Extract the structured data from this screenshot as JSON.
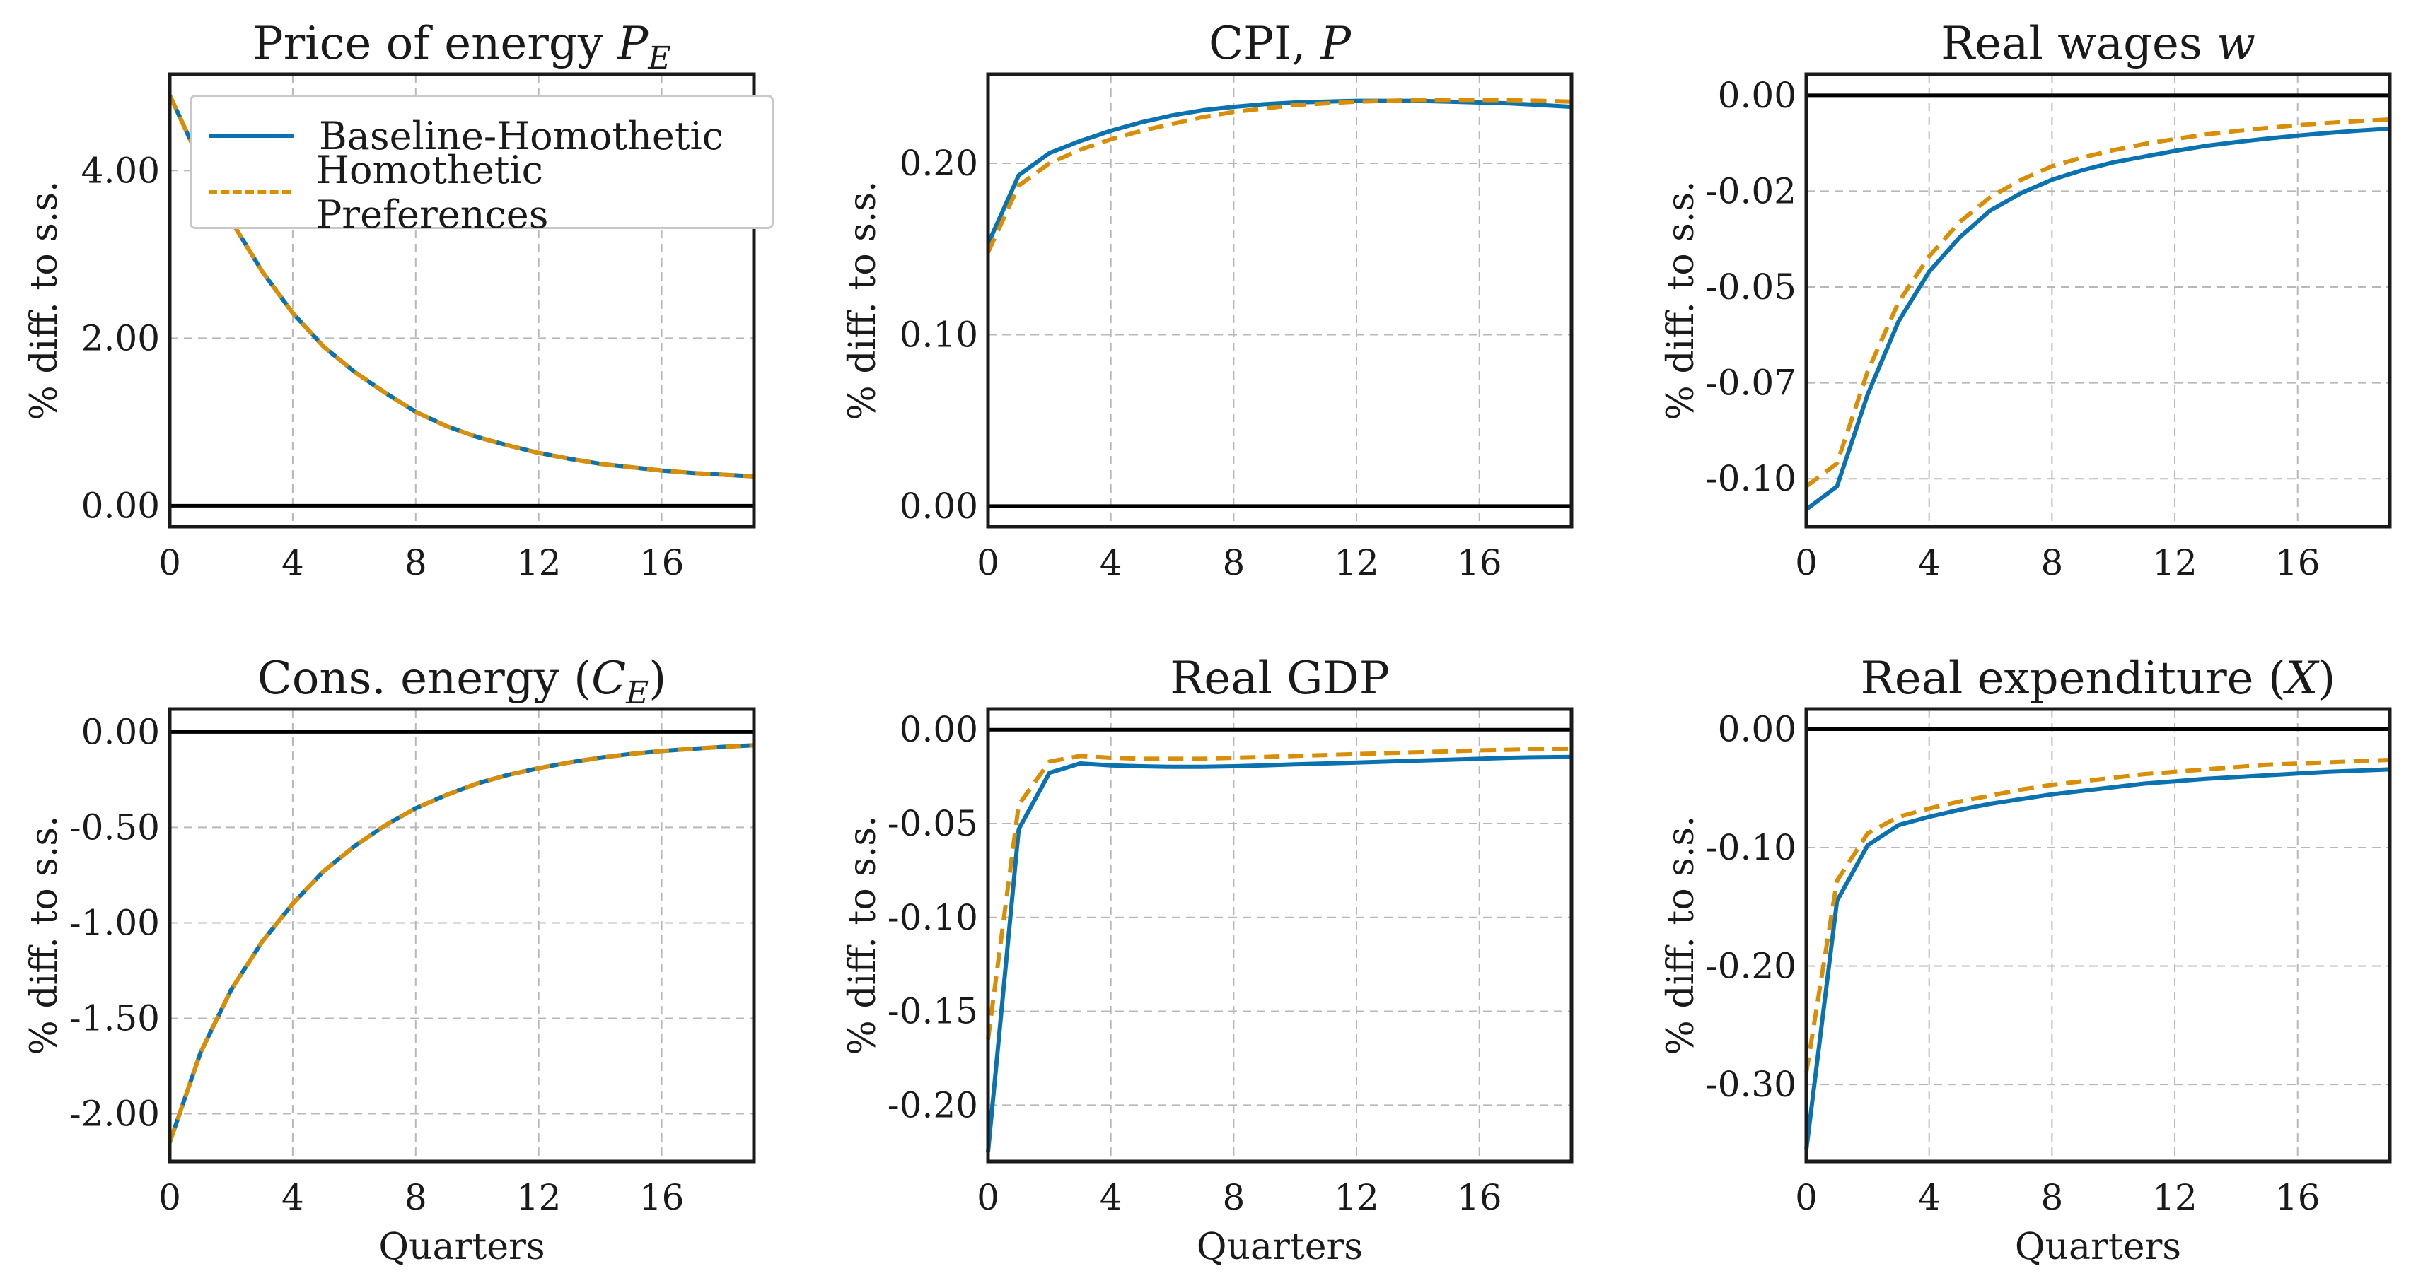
{
  "legend": {
    "placement": "top-right (first panel)",
    "items": [
      {
        "label": "Baseline-Homothetic",
        "color": "#0b72b0",
        "style": "solid"
      },
      {
        "label": "Homothetic Preferences",
        "color": "#d88e06",
        "style": "dashed"
      }
    ]
  },
  "chart_data": [
    {
      "type": "line",
      "title": "Price of energy ",
      "title_var": "P",
      "title_sub": "E",
      "title_suffix": "",
      "ylabel": "% diff. to s.s.",
      "xlabel": "",
      "xlim": [
        0,
        19
      ],
      "ylim": [
        -0.25,
        5.15
      ],
      "xticks": [
        0,
        4,
        8,
        12,
        16
      ],
      "xtick_labels": [
        "0",
        "4",
        "8",
        "12",
        "16"
      ],
      "yticks": [
        0,
        2,
        4
      ],
      "ytick_labels": [
        "0.00",
        "2.00",
        "4.00"
      ],
      "grid": true,
      "zero_line": true,
      "x": [
        0,
        1,
        2,
        3,
        4,
        5,
        6,
        7,
        8,
        9,
        10,
        11,
        12,
        13,
        14,
        15,
        16,
        17,
        18,
        19
      ],
      "series": [
        {
          "name": "Baseline-Homothetic",
          "values": [
            4.9,
            4.1,
            3.4,
            2.8,
            2.3,
            1.9,
            1.6,
            1.35,
            1.12,
            0.95,
            0.82,
            0.72,
            0.63,
            0.56,
            0.5,
            0.46,
            0.42,
            0.39,
            0.37,
            0.35
          ]
        },
        {
          "name": "Homothetic Preferences",
          "values": [
            4.9,
            4.1,
            3.4,
            2.8,
            2.3,
            1.9,
            1.6,
            1.35,
            1.12,
            0.95,
            0.82,
            0.72,
            0.63,
            0.56,
            0.5,
            0.46,
            0.42,
            0.39,
            0.37,
            0.35
          ]
        }
      ]
    },
    {
      "type": "line",
      "title": "CPI, ",
      "title_var": "P",
      "title_sub": "",
      "title_suffix": "",
      "ylabel": "% diff. to s.s.",
      "xlabel": "",
      "xlim": [
        0,
        19
      ],
      "ylim": [
        -0.012,
        0.252
      ],
      "xticks": [
        0,
        4,
        8,
        12,
        16
      ],
      "xtick_labels": [
        "0",
        "4",
        "8",
        "12",
        "16"
      ],
      "yticks": [
        0,
        0.1,
        0.2
      ],
      "ytick_labels": [
        "0.00",
        "0.10",
        "0.20"
      ],
      "grid": true,
      "zero_line": true,
      "x": [
        0,
        1,
        2,
        3,
        4,
        5,
        6,
        7,
        8,
        9,
        10,
        11,
        12,
        13,
        14,
        15,
        16,
        17,
        18,
        19
      ],
      "series": [
        {
          "name": "Baseline-Homothetic",
          "values": [
            0.153,
            0.193,
            0.206,
            0.213,
            0.219,
            0.224,
            0.228,
            0.231,
            0.233,
            0.2345,
            0.2355,
            0.236,
            0.2365,
            0.2365,
            0.2365,
            0.236,
            0.2355,
            0.235,
            0.234,
            0.233
          ]
        },
        {
          "name": "Homothetic Preferences",
          "values": [
            0.148,
            0.187,
            0.2,
            0.208,
            0.214,
            0.219,
            0.223,
            0.227,
            0.23,
            0.232,
            0.234,
            0.235,
            0.236,
            0.2365,
            0.237,
            0.237,
            0.237,
            0.2368,
            0.2365,
            0.236
          ]
        }
      ]
    },
    {
      "type": "line",
      "title": "Real wages ",
      "title_var": "w",
      "title_sub": "",
      "title_suffix": "",
      "ylabel": "% diff. to s.s.",
      "xlabel": "",
      "xlim": [
        0,
        19
      ],
      "ylim": [
        -0.1125,
        0.0055
      ],
      "xticks": [
        0,
        4,
        8,
        12,
        16
      ],
      "xtick_labels": [
        "0",
        "4",
        "8",
        "12",
        "16"
      ],
      "yticks": [
        0,
        -0.025,
        -0.05,
        -0.075,
        -0.1
      ],
      "ytick_labels": [
        "0.00",
        "-0.02",
        "-0.05",
        "-0.07",
        "-0.10"
      ],
      "grid": true,
      "zero_line": true,
      "x": [
        0,
        1,
        2,
        3,
        4,
        5,
        6,
        7,
        8,
        9,
        10,
        11,
        12,
        13,
        14,
        15,
        16,
        17,
        18,
        19
      ],
      "series": [
        {
          "name": "Baseline-Homothetic",
          "values": [
            -0.108,
            -0.102,
            -0.078,
            -0.059,
            -0.046,
            -0.037,
            -0.03,
            -0.0255,
            -0.022,
            -0.0195,
            -0.0175,
            -0.016,
            -0.0145,
            -0.0132,
            -0.0122,
            -0.0113,
            -0.0105,
            -0.0098,
            -0.0092,
            -0.0087
          ]
        },
        {
          "name": "Homothetic Preferences",
          "values": [
            -0.102,
            -0.096,
            -0.072,
            -0.054,
            -0.042,
            -0.033,
            -0.0265,
            -0.022,
            -0.0185,
            -0.0162,
            -0.0143,
            -0.0127,
            -0.0114,
            -0.0102,
            -0.0093,
            -0.0085,
            -0.0078,
            -0.0072,
            -0.0067,
            -0.0063
          ]
        }
      ]
    },
    {
      "type": "line",
      "title": "Cons. energy (",
      "title_var": "C",
      "title_sub": "E",
      "title_suffix": ")",
      "ylabel": "% diff. to s.s.",
      "xlabel": "Quarters",
      "xlim": [
        0,
        19
      ],
      "ylim": [
        -2.25,
        0.12
      ],
      "xticks": [
        0,
        4,
        8,
        12,
        16
      ],
      "xtick_labels": [
        "0",
        "4",
        "8",
        "12",
        "16"
      ],
      "yticks": [
        0,
        -0.5,
        -1,
        -1.5,
        -2
      ],
      "ytick_labels": [
        "0.00",
        "-0.50",
        "-1.00",
        "-1.50",
        "-2.00"
      ],
      "grid": true,
      "zero_line": true,
      "x": [
        0,
        1,
        2,
        3,
        4,
        5,
        6,
        7,
        8,
        9,
        10,
        11,
        12,
        13,
        14,
        15,
        16,
        17,
        18,
        19
      ],
      "series": [
        {
          "name": "Baseline-Homothetic",
          "values": [
            -2.15,
            -1.68,
            -1.35,
            -1.1,
            -0.9,
            -0.73,
            -0.6,
            -0.49,
            -0.4,
            -0.33,
            -0.27,
            -0.225,
            -0.19,
            -0.16,
            -0.135,
            -0.115,
            -0.1,
            -0.088,
            -0.078,
            -0.07
          ]
        },
        {
          "name": "Homothetic Preferences",
          "values": [
            -2.15,
            -1.68,
            -1.35,
            -1.1,
            -0.9,
            -0.73,
            -0.6,
            -0.49,
            -0.4,
            -0.33,
            -0.27,
            -0.225,
            -0.19,
            -0.16,
            -0.135,
            -0.115,
            -0.1,
            -0.088,
            -0.078,
            -0.07
          ]
        }
      ]
    },
    {
      "type": "line",
      "title": "Real GDP",
      "title_var": "",
      "title_sub": "",
      "title_suffix": "",
      "ylabel": "% diff. to s.s.",
      "xlabel": "Quarters",
      "xlim": [
        0,
        19
      ],
      "ylim": [
        -0.23,
        0.011
      ],
      "xticks": [
        0,
        4,
        8,
        12,
        16
      ],
      "xtick_labels": [
        "0",
        "4",
        "8",
        "12",
        "16"
      ],
      "yticks": [
        0,
        -0.05,
        -0.1,
        -0.15,
        -0.2
      ],
      "ytick_labels": [
        "0.00",
        "-0.05",
        "-0.10",
        "-0.15",
        "-0.20"
      ],
      "grid": true,
      "zero_line": true,
      "x": [
        0,
        1,
        2,
        3,
        4,
        5,
        6,
        7,
        8,
        9,
        10,
        11,
        12,
        13,
        14,
        15,
        16,
        17,
        18,
        19
      ],
      "series": [
        {
          "name": "Baseline-Homothetic",
          "values": [
            -0.225,
            -0.053,
            -0.023,
            -0.018,
            -0.019,
            -0.0195,
            -0.0198,
            -0.0198,
            -0.0195,
            -0.019,
            -0.0185,
            -0.018,
            -0.0175,
            -0.017,
            -0.0165,
            -0.016,
            -0.0155,
            -0.015,
            -0.0147,
            -0.0145
          ]
        },
        {
          "name": "Homothetic Preferences",
          "values": [
            -0.165,
            -0.04,
            -0.017,
            -0.014,
            -0.015,
            -0.0155,
            -0.0155,
            -0.0155,
            -0.015,
            -0.0145,
            -0.014,
            -0.0135,
            -0.013,
            -0.0125,
            -0.012,
            -0.0115,
            -0.011,
            -0.0107,
            -0.0103,
            -0.01
          ]
        }
      ]
    },
    {
      "type": "line",
      "title": "Real expenditure (",
      "title_var": "X",
      "title_sub": "",
      "title_suffix": ")",
      "ylabel": "% diff. to s.s.",
      "xlabel": "Quarters",
      "xlim": [
        0,
        19
      ],
      "ylim": [
        -0.365,
        0.017
      ],
      "xticks": [
        0,
        4,
        8,
        12,
        16
      ],
      "xtick_labels": [
        "0",
        "4",
        "8",
        "12",
        "16"
      ],
      "yticks": [
        0,
        -0.1,
        -0.2,
        -0.3
      ],
      "ytick_labels": [
        "0.00",
        "-0.10",
        "-0.20",
        "-0.30"
      ],
      "grid": true,
      "zero_line": true,
      "x": [
        0,
        1,
        2,
        3,
        4,
        5,
        6,
        7,
        8,
        9,
        10,
        11,
        12,
        13,
        14,
        15,
        16,
        17,
        18,
        19
      ],
      "series": [
        {
          "name": "Baseline-Homothetic",
          "values": [
            -0.355,
            -0.145,
            -0.098,
            -0.081,
            -0.074,
            -0.068,
            -0.063,
            -0.059,
            -0.055,
            -0.052,
            -0.049,
            -0.046,
            -0.044,
            -0.042,
            -0.0405,
            -0.039,
            -0.0375,
            -0.036,
            -0.035,
            -0.034
          ]
        },
        {
          "name": "Homothetic Preferences",
          "values": [
            -0.29,
            -0.128,
            -0.088,
            -0.074,
            -0.067,
            -0.061,
            -0.056,
            -0.051,
            -0.047,
            -0.044,
            -0.041,
            -0.038,
            -0.036,
            -0.034,
            -0.032,
            -0.03,
            -0.029,
            -0.028,
            -0.027,
            -0.026
          ]
        }
      ]
    }
  ]
}
